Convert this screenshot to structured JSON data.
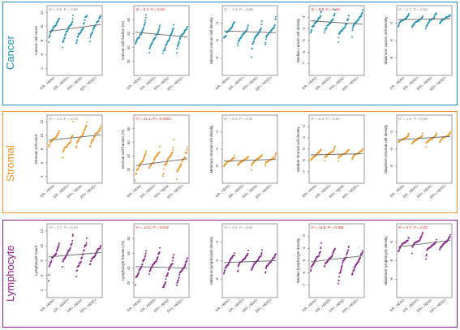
{
  "colors": {
    "cancer": "#1a90b8",
    "stromal": "#f5921e",
    "lymphocyte": "#8c1a8c",
    "significant": "#e8231f",
    "nonsignificant": "#888888",
    "trend": "#666666"
  },
  "chart_data": {
    "type": "scatter",
    "categories": [
      "ER-, HER2-",
      "ER-, HER2+",
      "ER+, HER2-",
      "ER+, HER2+"
    ],
    "rows": [
      {
        "name": "Cancer",
        "color_key": "cancer",
        "panels": [
          {
            "ylabel": "Cancer cell count",
            "ylim": [
              3,
              13
            ],
            "yticks": [
              "4",
              "6",
              "8",
              "10",
              "12"
            ],
            "stat_prefix": "X² = 0.9, ",
            "stat_p": "P = 0.83",
            "significant": false,
            "center": [
              9.8,
              9.6,
              9.8,
              9.9
            ],
            "spread": [
              2.2,
              2.2,
              2.4,
              2.2
            ],
            "trend": [
              9.3,
              10.3
            ]
          },
          {
            "ylabel": "Cancer cell fraction (%)",
            "ylim": [
              0,
              100
            ],
            "yticks": [
              "20",
              "40",
              "60",
              "80"
            ],
            "stat_prefix": "X² = 6.1, ",
            "stat_p": "P = 0.04",
            "significant": true,
            "center": [
              60,
              50,
              52,
              55
            ],
            "spread": [
              24,
              22,
              24,
              22
            ],
            "trend": [
              62,
              55
            ]
          },
          {
            "ylabel": "Minimum cancer cell density",
            "ylim": [
              -10,
              -2
            ],
            "yticks": [
              "-8",
              "-6",
              "-4"
            ],
            "stat_prefix": "X² = 1.3, ",
            "stat_p": "P = 0.69",
            "significant": false,
            "center": [
              -4.8,
              -5.2,
              -5.4,
              -5.0
            ],
            "spread": [
              1.6,
              1.4,
              1.6,
              1.4
            ],
            "trend": [
              -4.9,
              -5.1
            ]
          },
          {
            "ylabel": "Median cancer cell density",
            "ylim": [
              -8,
              -2
            ],
            "yticks": [
              "-7",
              "-6",
              "-5",
              "-4",
              "-3"
            ],
            "stat_prefix": "X² = 8.5, ",
            "stat_p": "P = 0.04",
            "significant": true,
            "center": [
              -3.4,
              -3.6,
              -3.7,
              -3.3
            ],
            "spread": [
              1.0,
              1.0,
              1.1,
              0.9
            ],
            "trend": [
              -3.3,
              -3.6
            ]
          },
          {
            "ylabel": "Maximum cancer cell density",
            "ylim": [
              -10,
              -2
            ],
            "yticks": [
              "-8",
              "-6",
              "-4"
            ],
            "stat_prefix": "X² = 1.7, ",
            "stat_p": "P = 0.63",
            "significant": false,
            "center": [
              -3.6,
              -3.8,
              -3.7,
              -3.5
            ],
            "spread": [
              0.7,
              0.7,
              0.8,
              0.6
            ],
            "trend": [
              -3.6,
              -3.5
            ]
          }
        ]
      },
      {
        "name": "Stromal",
        "color_key": "stromal",
        "panels": [
          {
            "ylabel": "Stromal cell count",
            "ylim": [
              3,
              13
            ],
            "yticks": [
              "4",
              "6",
              "8",
              "10",
              "12"
            ],
            "stat_prefix": "X² = 4.1, ",
            "stat_p": "P = 0.25",
            "significant": false,
            "center": [
              9.6,
              8.8,
              9.9,
              9.7
            ],
            "spread": [
              2.0,
              2.2,
              2.2,
              2.0
            ],
            "trend": [
              9.3,
              10.1
            ]
          },
          {
            "ylabel": "Stromal cell fraction (%)",
            "ylim": [
              0,
              100
            ],
            "yticks": [
              "20",
              "40",
              "60",
              "80"
            ],
            "stat_prefix": "X² = 21.1, ",
            "stat_p": "P = 0.0001",
            "significant": true,
            "center": [
              28,
              32,
              38,
              34
            ],
            "spread": [
              20,
              20,
              24,
              22
            ],
            "trend": [
              26,
              36
            ]
          },
          {
            "ylabel": "Minimum stromal cell density",
            "ylim": [
              -10,
              -2
            ],
            "yticks": [
              "-8",
              "-6",
              "-4"
            ],
            "stat_prefix": "X² = 0.3, ",
            "stat_p": "P = 0.91",
            "significant": false,
            "center": [
              -7.4,
              -7.3,
              -7.2,
              -7.3
            ],
            "spread": [
              0.6,
              0.6,
              0.7,
              0.6
            ],
            "trend": [
              -7.4,
              -7.2
            ]
          },
          {
            "ylabel": "Median stromal cell density",
            "ylim": [
              -8,
              -2
            ],
            "yticks": [
              "-7",
              "-6",
              "-5",
              "-4",
              "-3"
            ],
            "stat_prefix": "X² = 0.8, ",
            "stat_p": "P = 0.84",
            "significant": false,
            "center": [
              -5.5,
              -5.4,
              -5.5,
              -5.4
            ],
            "spread": [
              0.6,
              0.6,
              0.6,
              0.5
            ],
            "trend": [
              -5.5,
              -5.4
            ]
          },
          {
            "ylabel": "Maximum stromal cell density",
            "ylim": [
              -10,
              -2
            ],
            "yticks": [
              "-8",
              "-6",
              "-4"
            ],
            "stat_prefix": "X² = 1.5, ",
            "stat_p": "P = 0.69",
            "significant": false,
            "center": [
              -4.8,
              -4.8,
              -4.7,
              -4.6
            ],
            "spread": [
              0.8,
              0.7,
              0.8,
              0.7
            ],
            "trend": [
              -4.9,
              -4.5
            ]
          }
        ]
      },
      {
        "name": "Lymphocyte",
        "color_key": "lymphocyte",
        "panels": [
          {
            "ylabel": "Lymphocyte count",
            "ylim": [
              3,
              13
            ],
            "yticks": [
              "4",
              "6",
              "8",
              "10",
              "12"
            ],
            "stat_prefix": "X² = 1.7, ",
            "stat_p": "P = 0.64",
            "significant": false,
            "center": [
              8.4,
              9.4,
              8.9,
              8.6
            ],
            "spread": [
              2.4,
              2.0,
              2.6,
              2.2
            ],
            "trend": [
              8.5,
              9.1
            ]
          },
          {
            "ylabel": "Lymphocyte fraction (%)",
            "ylim": [
              0,
              100
            ],
            "yticks": [
              "20",
              "40",
              "60",
              "80"
            ],
            "stat_prefix": "X² = 14.5, ",
            "stat_p": "P = 0.002",
            "significant": true,
            "center": [
              38,
              44,
              34,
              36
            ],
            "spread": [
              24,
              22,
              24,
              22
            ],
            "trend": [
              42,
              40
            ]
          },
          {
            "ylabel": "Minimum lymphocyte density",
            "ylim": [
              -10,
              -2
            ],
            "yticks": [
              "-8",
              "-6",
              "-4"
            ],
            "stat_prefix": "X² = 1.0, ",
            "stat_p": "P = 0.81",
            "significant": false,
            "center": [
              -6.2,
              -6.0,
              -6.1,
              -6.2
            ],
            "spread": [
              1.2,
              1.2,
              1.3,
              1.1
            ],
            "trend": [
              -6.2,
              -6.0
            ]
          },
          {
            "ylabel": "Median lymphocyte density",
            "ylim": [
              -8,
              -2
            ],
            "yticks": [
              "-7",
              "-6",
              "-5",
              "-4",
              "-3"
            ],
            "stat_prefix": "X² = 11.9, ",
            "stat_p": "P = 0.008",
            "significant": true,
            "center": [
              -4.9,
              -4.7,
              -5.2,
              -5.0
            ],
            "spread": [
              1.3,
              1.1,
              1.4,
              1.2
            ],
            "trend": [
              -5.1,
              -4.6
            ]
          },
          {
            "ylabel": "Maximum lymphocyte density",
            "ylim": [
              -10,
              -2
            ],
            "yticks": [
              "-8",
              "-6",
              "-4"
            ],
            "stat_prefix": "X² = 8.7, ",
            "stat_p": "P = 0.03",
            "significant": true,
            "center": [
              -4.2,
              -4.0,
              -4.4,
              -4.1
            ],
            "spread": [
              0.9,
              0.9,
              1.0,
              0.9
            ],
            "trend": [
              -4.5,
              -3.8
            ]
          }
        ]
      }
    ]
  }
}
